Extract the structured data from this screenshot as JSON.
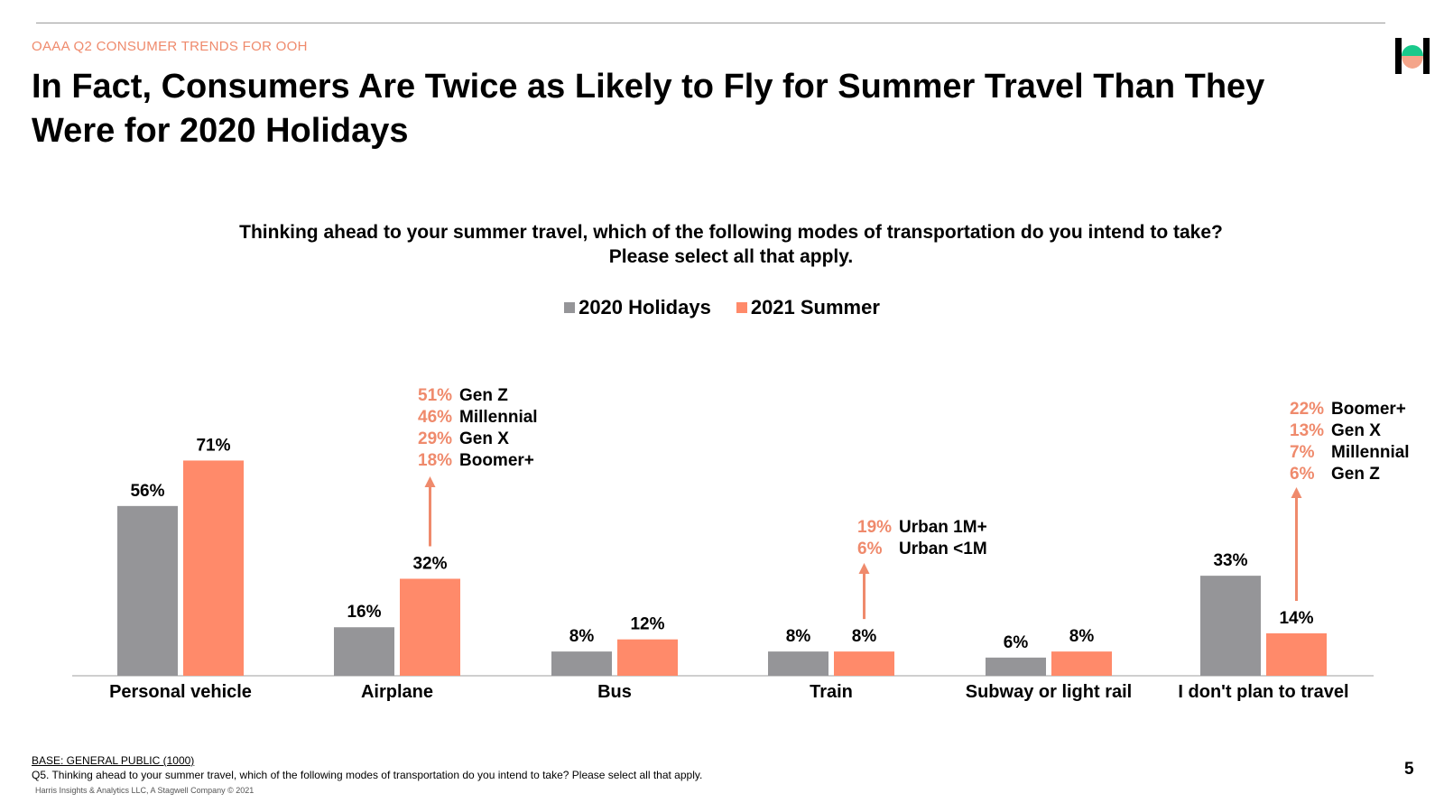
{
  "header": {
    "eyebrow": "OAAA Q2 CONSUMER TRENDS FOR OOH",
    "title": "In Fact, Consumers Are Twice as Likely to Fly for Summer Travel Than They Were for 2020 Holidays"
  },
  "question": {
    "line1": "Thinking ahead to your summer travel, which of the following modes of transportation do you intend to take?",
    "line2": "Please select all that apply."
  },
  "colors": {
    "holidays": "#959598",
    "summer": "#ff8a6a",
    "accent_text": "#ef8a6c",
    "logo_green": "#19c98b",
    "logo_peach": "#f4a58a"
  },
  "chart_data": {
    "type": "bar",
    "categories": [
      "Personal vehicle",
      "Airplane",
      "Bus",
      "Train",
      "Subway or light rail",
      "I don't plan to travel"
    ],
    "series": [
      {
        "name": "2020 Holidays",
        "values": [
          56,
          16,
          8,
          8,
          6,
          33
        ],
        "labels": [
          "56%",
          "16%",
          "8%",
          "8%",
          "6%",
          "33%"
        ]
      },
      {
        "name": "2021 Summer",
        "values": [
          71,
          32,
          12,
          8,
          8,
          14
        ],
        "labels": [
          "71%",
          "32%",
          "12%",
          "8%",
          "8%",
          "14%"
        ]
      }
    ],
    "unit": "%",
    "ylim": [
      0,
      80
    ],
    "grid": false,
    "legend": "top-center",
    "annotations": [
      {
        "category": "Airplane",
        "items": [
          {
            "pct": "51%",
            "label": "Gen Z"
          },
          {
            "pct": "46%",
            "label": "Millennial"
          },
          {
            "pct": "29%",
            "label": "Gen X"
          },
          {
            "pct": "18%",
            "label": "Boomer+"
          }
        ]
      },
      {
        "category": "Train",
        "items": [
          {
            "pct": "19%",
            "label": "Urban 1M+"
          },
          {
            "pct": "6%",
            "label": "Urban <1M"
          }
        ]
      },
      {
        "category": "I don't plan to travel",
        "items": [
          {
            "pct": "22%",
            "label": "Boomer+"
          },
          {
            "pct": "13%",
            "label": "Gen X"
          },
          {
            "pct": "7%",
            "label": "Millennial"
          },
          {
            "pct": "6%",
            "label": "Gen Z"
          }
        ]
      }
    ]
  },
  "footer": {
    "base": "BASE: GENERAL PUBLIC (1000)",
    "question_note": "Q5. Thinking ahead to your summer travel, which of the following modes of transportation do you intend to take? Please select all that apply.",
    "copyright": "Harris Insights & Analytics LLC, A Stagwell Company © 2021",
    "page_number": "5"
  }
}
